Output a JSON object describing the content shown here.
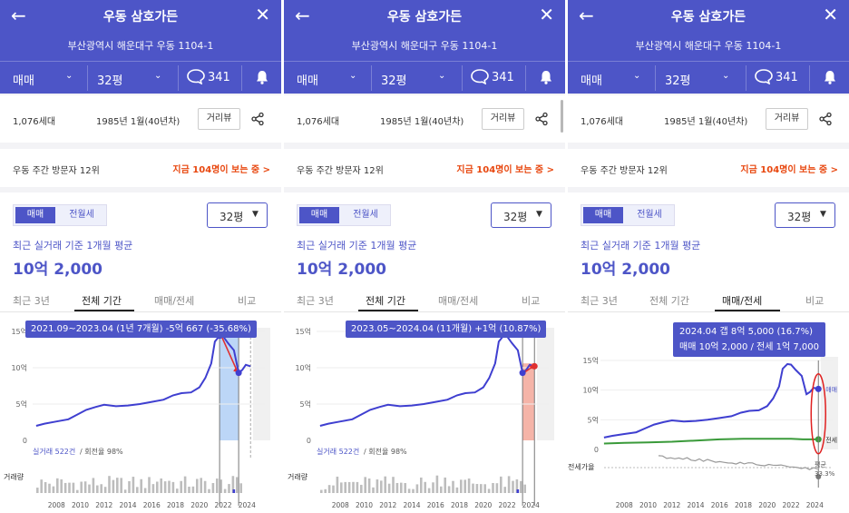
{
  "header": {
    "title": "우동 삼호가든",
    "address": "부산광역시 해운대구 우동 1104-1",
    "trade_type": "매매",
    "size": "32평",
    "comment_count": "341"
  },
  "info": {
    "households": "1,076세대",
    "built": "1985년 1월(40년차)",
    "street_view": "거리뷰"
  },
  "visit": {
    "rank": "우동 주간 방문자 12위",
    "now": "지금 104명이 보는 중 >"
  },
  "main": {
    "seg_sale": "매매",
    "seg_rent": "전월세",
    "size_select": "32평",
    "caption": "최근 실거래 기준 1개월 평균",
    "price": "10억 2,000",
    "tabs": [
      "최근 3년",
      "전체 기간",
      "매매/전세",
      "비교"
    ]
  },
  "panels": [
    {
      "active_tab": 1,
      "tooltip": "2021.09~2023.04 (1년 7개월)  -5억 667 (-35.68%)"
    },
    {
      "active_tab": 1,
      "tooltip": "2023.05~2024.04 (11개월)  +1억 (10.87%)"
    },
    {
      "active_tab": 2,
      "tooltip_line1": "2024.04  갭 8억 5,000 (16.7%)",
      "tooltip_line2": "매매 10억 2,000 / 전세 1억 7,000"
    }
  ],
  "chart_labels": {
    "volume_label": "거래량",
    "deals": "실거래 522건",
    "turnover": " / 회전율 98%",
    "sale_label": "매매",
    "jeonse_label": "전세",
    "ratio_label": "전세가율",
    "avg_label": "평균",
    "avg_value": "33.3%"
  },
  "chart_data": [
    {
      "type": "line",
      "title": "",
      "yticks": [
        "0",
        "5억",
        "10억",
        "15억"
      ],
      "ylim": [
        0,
        15
      ],
      "xticks": [
        "2008",
        "2010",
        "2012",
        "2014",
        "2016",
        "2018",
        "2020",
        "2022",
        "2024"
      ],
      "xlim": [
        2006,
        2025.5
      ],
      "series": [
        {
          "name": "매매",
          "x": [
            2006.3,
            2007,
            2008,
            2009,
            2009.8,
            2010.5,
            2011.3,
            2012,
            2013,
            2014,
            2015,
            2016,
            2017,
            2017.8,
            2018.5,
            2019.3,
            2020,
            2020.5,
            2021,
            2021.3,
            2021.7,
            2022,
            2022.4,
            2022.9,
            2023.3,
            2023.6,
            2023.9,
            2024.3
          ],
          "values": [
            2.0,
            2.3,
            2.6,
            2.9,
            3.6,
            4.2,
            4.6,
            4.9,
            4.7,
            4.8,
            5.0,
            5.3,
            5.6,
            6.2,
            6.5,
            6.6,
            7.3,
            8.6,
            10.6,
            13.6,
            14.4,
            14.3,
            13.4,
            12.4,
            9.3,
            9.7,
            10.4,
            10.2
          ]
        }
      ]
    },
    {
      "type": "line",
      "title": "",
      "yticks": [
        "0",
        "5억",
        "10억",
        "15억"
      ],
      "ylim": [
        0,
        15
      ],
      "xticks": [
        "2008",
        "2010",
        "2012",
        "2014",
        "2016",
        "2018",
        "2020",
        "2022",
        "2024"
      ],
      "xlim": [
        2006,
        2025.5
      ],
      "series": [
        {
          "name": "매매",
          "x": [
            2006.3,
            2007,
            2008,
            2009,
            2009.8,
            2010.5,
            2011.3,
            2012,
            2013,
            2014,
            2015,
            2016,
            2017,
            2017.8,
            2018.5,
            2019.3,
            2020,
            2020.5,
            2021,
            2021.3,
            2021.7,
            2022,
            2022.4,
            2022.9,
            2023.3,
            2023.6,
            2023.9,
            2024.3
          ],
          "values": [
            2.0,
            2.3,
            2.6,
            2.9,
            3.6,
            4.2,
            4.6,
            4.9,
            4.7,
            4.8,
            5.0,
            5.3,
            5.6,
            6.2,
            6.5,
            6.6,
            7.3,
            8.6,
            10.6,
            13.6,
            14.4,
            14.3,
            13.4,
            12.4,
            9.3,
            9.7,
            10.4,
            10.2
          ]
        }
      ]
    },
    {
      "type": "line",
      "title": "",
      "yticks": [
        "0",
        "5억",
        "10억",
        "15억"
      ],
      "ylim": [
        0,
        15
      ],
      "xticks": [
        "2008",
        "2010",
        "2012",
        "2014",
        "2016",
        "2018",
        "2020",
        "2022",
        "2024"
      ],
      "xlim": [
        2006,
        2025.5
      ],
      "series": [
        {
          "name": "매매",
          "x": [
            2006.3,
            2007,
            2008,
            2009,
            2009.8,
            2010.5,
            2011.3,
            2012,
            2013,
            2014,
            2015,
            2016,
            2017,
            2017.8,
            2018.5,
            2019.3,
            2020,
            2020.5,
            2021,
            2021.3,
            2021.7,
            2022,
            2022.4,
            2022.9,
            2023.3,
            2023.6,
            2023.9,
            2024.3
          ],
          "values": [
            2.0,
            2.3,
            2.6,
            2.9,
            3.6,
            4.2,
            4.6,
            4.9,
            4.7,
            4.8,
            5.0,
            5.3,
            5.6,
            6.2,
            6.5,
            6.6,
            7.3,
            8.6,
            10.6,
            13.6,
            14.4,
            14.3,
            13.4,
            12.4,
            9.3,
            9.7,
            10.4,
            10.2
          ]
        },
        {
          "name": "전세",
          "x": [
            2006.3,
            2008,
            2010,
            2012,
            2014,
            2016,
            2018,
            2020,
            2022,
            2023,
            2024.3
          ],
          "values": [
            1.0,
            1.1,
            1.2,
            1.3,
            1.5,
            1.7,
            1.8,
            1.8,
            1.8,
            1.7,
            1.7
          ]
        }
      ]
    }
  ],
  "colors": {
    "brand": "#4d55c7",
    "sale_line": "#3f3fd0",
    "jeonse_line": "#3a9a3a",
    "highlight_down": "#bcd6f7",
    "highlight_up": "#f5b4a8",
    "accent_orange": "#e8470f"
  }
}
